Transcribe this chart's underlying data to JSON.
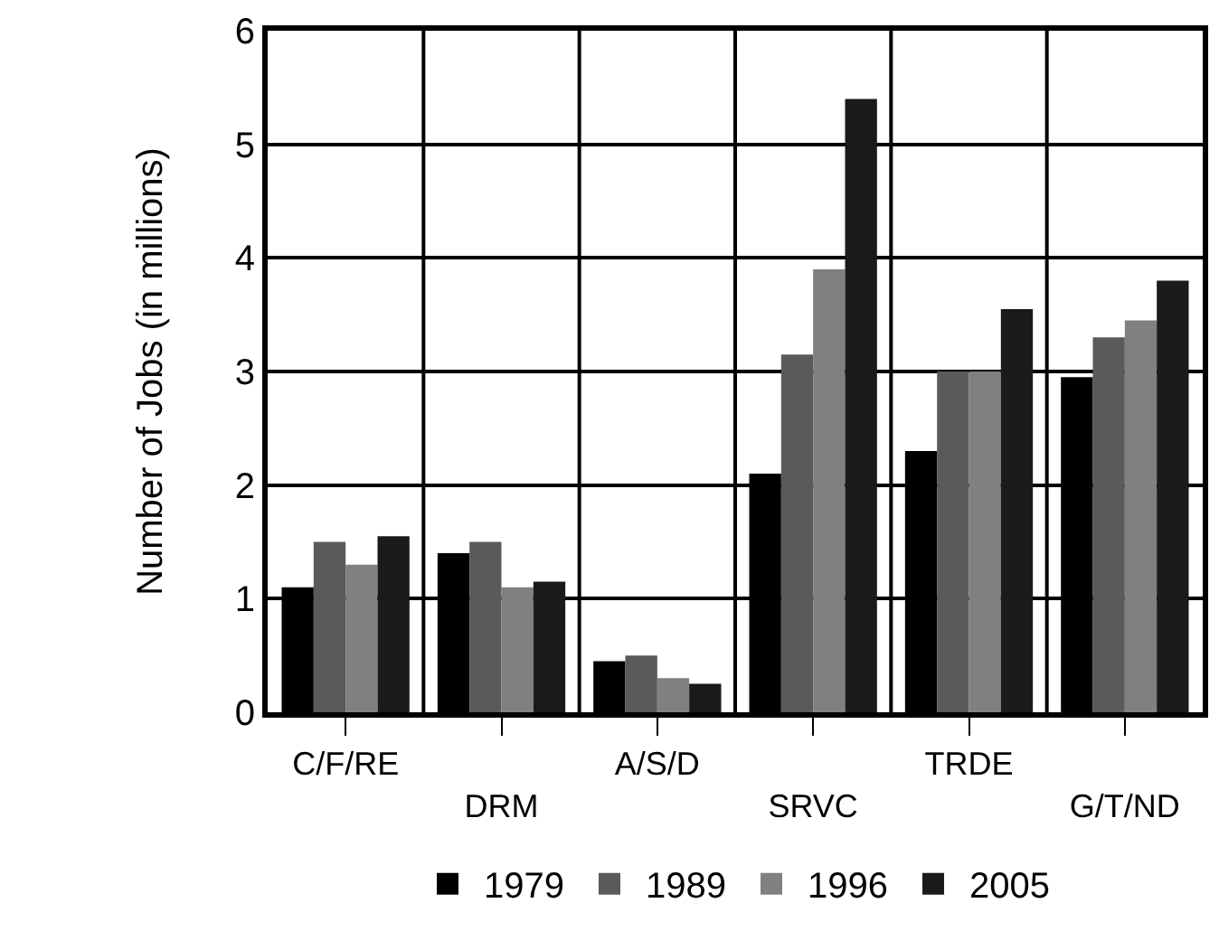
{
  "chart_data": {
    "type": "bar",
    "ylabel": "Number of Jobs (in millions)",
    "categories": [
      "C/F/RE",
      "DRM",
      "A/S/D",
      "SRVC",
      "TRDE",
      "G/T/ND"
    ],
    "series": [
      {
        "name": "1979",
        "color": "#000000",
        "values": [
          1.1,
          1.4,
          0.45,
          2.1,
          2.3,
          2.95
        ]
      },
      {
        "name": "1989",
        "color": "#5a5a5a",
        "values": [
          1.5,
          1.5,
          0.5,
          3.15,
          3.0,
          3.3
        ]
      },
      {
        "name": "1996",
        "color": "#808080",
        "values": [
          1.3,
          1.1,
          0.3,
          3.9,
          3.0,
          3.45
        ]
      },
      {
        "name": "2005",
        "color": "#1a1a1a",
        "values": [
          1.55,
          1.15,
          0.25,
          5.4,
          3.55,
          3.8
        ]
      }
    ],
    "ylim": [
      0,
      6
    ],
    "yticks": [
      0,
      1,
      2,
      3,
      4,
      5,
      6
    ],
    "grid": true,
    "legend": "bottom"
  }
}
